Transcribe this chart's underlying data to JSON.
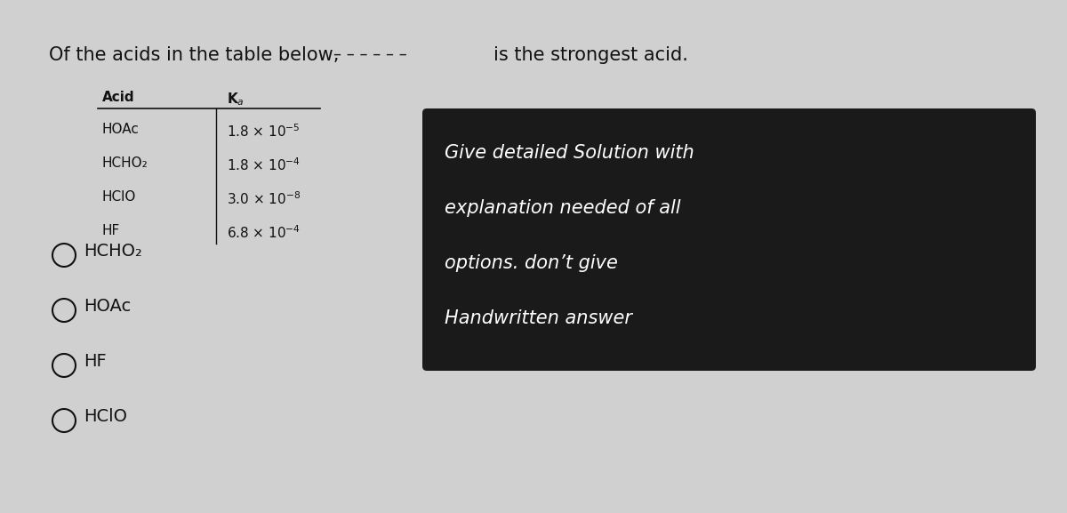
{
  "title_text": "Of the acids in the table below,",
  "title_suffix": "is the strongest acid.",
  "bg_color": "#d0d0d0",
  "table_header": [
    "Acid",
    "Kₐ"
  ],
  "table_rows": [
    [
      "HOAc",
      "1.8 × 10⁻⁵"
    ],
    [
      "HCHO₂",
      "1.8 × 10⁻⁴"
    ],
    [
      "HClO",
      "3.0 × 10⁻⁸"
    ],
    [
      "HF",
      "6.8 × 10⁻⁴"
    ]
  ],
  "options": [
    "HCHO₂",
    "HOAc",
    "HF",
    "HClO"
  ],
  "box_text": [
    "Give detailed Solution with",
    "explanation needed of all",
    "options. don’t give",
    "Handwritten answer"
  ],
  "box_bg": "#1a1a1a",
  "box_text_color": "#ffffff",
  "text_color": "#111111",
  "dashes": "- - - - - -"
}
